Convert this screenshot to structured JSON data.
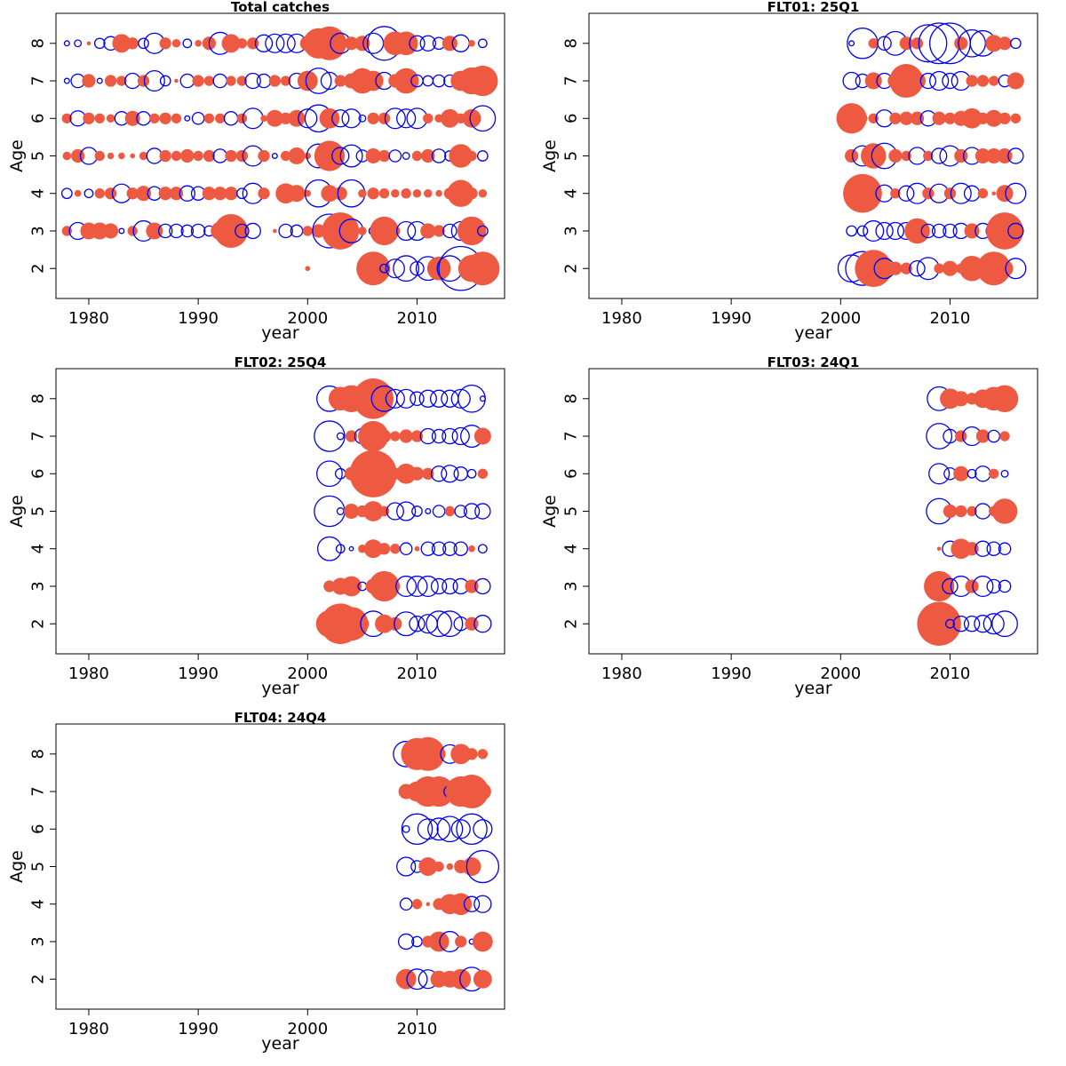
{
  "colors": {
    "negative": "#EE5A41",
    "positive": "#0000EE",
    "axis": "#000000"
  },
  "chart_data": [
    {
      "type": "scatter",
      "title": "Total catches",
      "xlabel": "year",
      "ylabel": "Age",
      "xlim": [
        1977,
        2018
      ],
      "ylim": [
        1.2,
        8.8
      ],
      "xticks": [
        1980,
        1990,
        2000,
        2010
      ],
      "yticks": [
        2,
        3,
        4,
        5,
        6,
        7,
        8
      ],
      "years": [
        1978,
        1979,
        1980,
        1981,
        1982,
        1983,
        1984,
        1985,
        1986,
        1987,
        1988,
        1989,
        1990,
        1991,
        1992,
        1993,
        1994,
        1995,
        1996,
        1997,
        1998,
        1999,
        2000,
        2001,
        2002,
        2003,
        2004,
        2005,
        2006,
        2007,
        2008,
        2009,
        2010,
        2011,
        2012,
        2013,
        2014,
        2015,
        2016
      ],
      "residuals": {
        "2": [
          0,
          0,
          0,
          0,
          0,
          0,
          0,
          0,
          0,
          0,
          0,
          0,
          0,
          0,
          0,
          0,
          0,
          0,
          0,
          0,
          0,
          0,
          -0.15,
          0,
          0,
          0,
          0,
          0,
          -1.0,
          0.25,
          0.55,
          0.75,
          0.4,
          0.7,
          -0.7,
          0.75,
          1.3,
          -0.8,
          -1.0
        ],
        "3": [
          -0.3,
          0.5,
          -0.5,
          -0.5,
          -0.45,
          0.15,
          -0.3,
          0.6,
          -0.5,
          0.4,
          0.4,
          0.35,
          0.4,
          0.3,
          -0.55,
          -1.0,
          0.4,
          0.45,
          0,
          -0.12,
          0.4,
          0.35,
          -0.3,
          -0.4,
          1.0,
          -1.1,
          0.7,
          -0.25,
          0.25,
          -0.85,
          -0.3,
          0.55,
          0.55,
          -0.45,
          -0.35,
          0.4,
          0.55,
          -0.85,
          0.3
        ],
        "4": [
          0.3,
          -0.2,
          0.25,
          -0.3,
          -0.35,
          0.55,
          -0.35,
          -0.45,
          0.4,
          -0.4,
          -0.4,
          0.45,
          0.4,
          -0.4,
          -0.4,
          -0.4,
          0.3,
          0.6,
          -0.35,
          0,
          -0.6,
          -0.5,
          -0.2,
          0.8,
          -0.5,
          -0.4,
          0.8,
          -0.25,
          -0.35,
          -0.3,
          -0.25,
          -0.3,
          -0.25,
          -0.25,
          -0.2,
          -0.35,
          -0.8,
          -0.35,
          -0.25
        ],
        "5": [
          -0.25,
          -0.4,
          0.5,
          -0.3,
          -0.2,
          -0.2,
          -0.15,
          -0.25,
          0.45,
          -0.35,
          -0.3,
          -0.4,
          -0.3,
          -0.35,
          0.4,
          -0.35,
          -0.35,
          0.6,
          -0.35,
          0.15,
          -0.3,
          -0.5,
          -0.2,
          0.7,
          -0.9,
          0.5,
          0.65,
          0.35,
          -0.45,
          -0.35,
          0.35,
          0.2,
          -0.3,
          -0.4,
          0.4,
          0.3,
          -0.7,
          -0.3,
          0.3
        ],
        "6": [
          -0.3,
          0.45,
          -0.35,
          -0.3,
          -0.25,
          0.4,
          -0.45,
          0.4,
          -0.3,
          -0.35,
          -0.3,
          0.15,
          0.35,
          -0.3,
          -0.3,
          0.4,
          -0.3,
          0.6,
          -0.2,
          -0.5,
          -0.35,
          -0.5,
          0.55,
          0.8,
          -0.6,
          0.5,
          0.55,
          0.2,
          -0.35,
          -0.35,
          0.6,
          0.55,
          0.6,
          -0.3,
          -0.25,
          -0.55,
          -0.3,
          -0.55,
          0.75
        ],
        "7": [
          0.15,
          0.4,
          -0.4,
          0.15,
          -0.35,
          -0.3,
          0.45,
          -0.35,
          0.6,
          0.3,
          -0.12,
          0.4,
          -0.35,
          -0.3,
          0.4,
          -0.3,
          -0.3,
          0.45,
          0.4,
          -0.35,
          -0.3,
          0.45,
          -0.6,
          0.75,
          0.5,
          -0.35,
          -0.45,
          -0.75,
          -0.6,
          0.5,
          -0.4,
          -0.75,
          0.35,
          0.3,
          0.35,
          0.35,
          -0.6,
          -0.8,
          -0.9
        ],
        "8": [
          0.15,
          0.2,
          -0.12,
          0.3,
          0.4,
          -0.55,
          -0.35,
          0.3,
          0.6,
          -0.35,
          -0.25,
          0.25,
          -0.2,
          -0.4,
          0.65,
          -0.55,
          -0.3,
          -0.35,
          0.5,
          0.55,
          0.55,
          0.55,
          -0.45,
          -0.9,
          -1.0,
          0.6,
          -0.4,
          -0.45,
          0.6,
          1.0,
          -0.7,
          -0.7,
          0.45,
          0.45,
          0.35,
          -0.45,
          0.5,
          -0.2,
          0.25
        ]
      }
    },
    {
      "type": "scatter",
      "title": "FLT01: 25Q1",
      "xlabel": "year",
      "ylabel": "Age",
      "xlim": [
        1977,
        2018
      ],
      "ylim": [
        1.2,
        8.8
      ],
      "xticks": [
        1980,
        1990,
        2000,
        2010
      ],
      "yticks": [
        2,
        3,
        4,
        5,
        6,
        7,
        8
      ],
      "years": [
        2001,
        2002,
        2003,
        2004,
        2005,
        2006,
        2007,
        2008,
        2009,
        2010,
        2011,
        2012,
        2013,
        2014,
        2015,
        2016
      ],
      "residuals": {
        "2": [
          0.8,
          1.0,
          -1.1,
          0.6,
          -0.4,
          -0.35,
          0.45,
          0.65,
          -0.3,
          -0.45,
          -0.3,
          -0.75,
          -0.4,
          -1.0,
          -0.5,
          0.6
        ],
        "3": [
          0.3,
          0.3,
          0.6,
          0.5,
          0.5,
          0.5,
          -0.75,
          0.4,
          0.4,
          0.4,
          0.45,
          -0.45,
          0.45,
          0.45,
          -1.1,
          0.45
        ],
        "4": [
          0.35,
          -1.15,
          -0.5,
          0.5,
          -0.3,
          0.45,
          0.6,
          -0.35,
          0.55,
          -0.35,
          0.6,
          0.45,
          -0.3,
          -0.12,
          -0.5,
          0.6
        ],
        "5": [
          -0.4,
          0.6,
          -0.75,
          0.75,
          -0.4,
          -0.3,
          0.5,
          -0.3,
          0.45,
          0.6,
          -0.4,
          0.5,
          -0.45,
          -0.45,
          -0.45,
          0.45
        ],
        "6": [
          -0.9,
          -0.3,
          -0.3,
          0.5,
          -0.35,
          -0.4,
          -0.4,
          0.45,
          -0.4,
          -0.35,
          -0.45,
          -0.6,
          -0.35,
          -0.5,
          -0.35,
          -0.3
        ],
        "7": [
          0.5,
          0.4,
          -0.5,
          0.45,
          -0.45,
          -1.0,
          -0.5,
          0.45,
          0.55,
          0.45,
          0.55,
          -0.35,
          -0.35,
          -0.3,
          0.35,
          -0.5
        ],
        "8": [
          0.15,
          0.9,
          -0.3,
          0.4,
          0.7,
          -0.4,
          -0.35,
          1.1,
          1.2,
          1.2,
          -0.4,
          0.8,
          0.75,
          -0.5,
          -0.4,
          0.3
        ]
      }
    },
    {
      "type": "scatter",
      "title": "FLT02: 25Q4",
      "xlabel": "year",
      "ylabel": "Age",
      "xlim": [
        1977,
        2018
      ],
      "ylim": [
        1.2,
        8.8
      ],
      "xticks": [
        1980,
        1990,
        2000,
        2010
      ],
      "yticks": [
        2,
        3,
        4,
        5,
        6,
        7,
        8
      ],
      "years": [
        2002,
        2003,
        2004,
        2005,
        2006,
        2007,
        2008,
        2009,
        2010,
        2011,
        2012,
        2013,
        2014,
        2015,
        2016
      ],
      "residuals": {
        "2": [
          -0.8,
          -1.2,
          -1.0,
          -0.4,
          0.75,
          -0.55,
          -0.4,
          0.7,
          0.45,
          0.55,
          0.75,
          0.75,
          0.4,
          -0.4,
          0.5
        ],
        "3": [
          -0.35,
          -0.5,
          -0.6,
          0.25,
          -0.45,
          -0.9,
          -0.3,
          0.6,
          0.6,
          0.6,
          0.45,
          0.45,
          0.45,
          -0.4,
          0.45
        ],
        "4": [
          0.7,
          0.25,
          0.12,
          -0.25,
          -0.55,
          -0.35,
          -0.3,
          0.35,
          -0.15,
          0.4,
          0.4,
          0.4,
          0.4,
          -0.2,
          0.25
        ],
        "5": [
          0.9,
          0.2,
          -0.45,
          -0.35,
          -0.6,
          -0.3,
          0.5,
          0.55,
          0.3,
          0.15,
          0.35,
          -0.3,
          0.35,
          0.45,
          0.45
        ],
        "6": [
          0.75,
          0.3,
          -0.4,
          -0.5,
          -1.4,
          -0.3,
          -0.35,
          -0.6,
          -0.4,
          -0.35,
          0.45,
          0.5,
          0.4,
          0.25,
          -0.3
        ],
        "7": [
          0.9,
          0.2,
          -0.35,
          0.45,
          -0.9,
          -0.4,
          -0.3,
          -0.4,
          -0.35,
          0.45,
          0.4,
          0.45,
          0.5,
          0.65,
          -0.5
        ],
        "8": [
          0.75,
          -0.7,
          -0.8,
          -0.5,
          -1.2,
          0.75,
          0.55,
          0.55,
          0.4,
          0.5,
          0.5,
          0.5,
          0.55,
          0.8,
          0.15
        ]
      }
    },
    {
      "type": "scatter",
      "title": "FLT03: 24Q1",
      "xlabel": "year",
      "ylabel": "Age",
      "xlim": [
        1977,
        2018
      ],
      "ylim": [
        1.2,
        8.8
      ],
      "xticks": [
        1980,
        1990,
        2000,
        2010
      ],
      "yticks": [
        2,
        3,
        4,
        5,
        6,
        7,
        8
      ],
      "years": [
        2009,
        2010,
        2011,
        2012,
        2013,
        2014,
        2015
      ],
      "residuals": {
        "2": [
          -1.3,
          0.25,
          0.45,
          0.45,
          0.5,
          0.6,
          0.75
        ],
        "3": [
          -0.9,
          0.45,
          0.6,
          -0.4,
          0.6,
          0.4,
          0.35
        ],
        "4": [
          -0.12,
          0.45,
          -0.6,
          -0.4,
          0.45,
          0.4,
          0.35
        ],
        "5": [
          0.75,
          -0.4,
          -0.35,
          -0.3,
          0.45,
          -0.3,
          -0.75
        ],
        "6": [
          0.6,
          0.35,
          -0.45,
          0.25,
          0.45,
          -0.3,
          0.2
        ],
        "7": [
          0.75,
          0.4,
          -0.35,
          0.55,
          -0.4,
          0.35,
          -0.3
        ],
        "8": [
          0.7,
          -0.6,
          -0.45,
          -0.35,
          -0.55,
          -0.7,
          -0.8
        ]
      }
    },
    {
      "type": "scatter",
      "title": "FLT04: 24Q4",
      "xlabel": "year",
      "ylabel": "Age",
      "xlim": [
        1977,
        2018
      ],
      "ylim": [
        1.2,
        8.8
      ],
      "xticks": [
        1980,
        1990,
        2000,
        2010
      ],
      "yticks": [
        2,
        3,
        4,
        5,
        6,
        7,
        8
      ],
      "years": [
        2009,
        2010,
        2011,
        2012,
        2013,
        2014,
        2015,
        2016
      ],
      "residuals": {
        "2": [
          -0.6,
          0.6,
          0.55,
          -0.5,
          -0.5,
          -0.6,
          0.7,
          -0.55
        ],
        "3": [
          0.45,
          0.3,
          -0.35,
          -0.6,
          0.6,
          -0.35,
          0.15,
          -0.6
        ],
        "4": [
          0.35,
          -0.3,
          -0.12,
          -0.35,
          -0.6,
          -0.65,
          0.45,
          0.5
        ],
        "5": [
          0.55,
          0.35,
          -0.55,
          -0.3,
          -0.2,
          -0.4,
          -0.55,
          0.95
        ],
        "6": [
          0.2,
          0.9,
          0.6,
          0.65,
          0.75,
          0.55,
          0.9,
          0.55
        ],
        "7": [
          -0.45,
          -0.6,
          -0.9,
          -0.9,
          0.35,
          -0.9,
          -1.0,
          -0.5
        ],
        "8": [
          0.75,
          -0.95,
          -1.0,
          -0.4,
          0.55,
          -0.6,
          -0.35,
          -0.3
        ]
      }
    }
  ]
}
